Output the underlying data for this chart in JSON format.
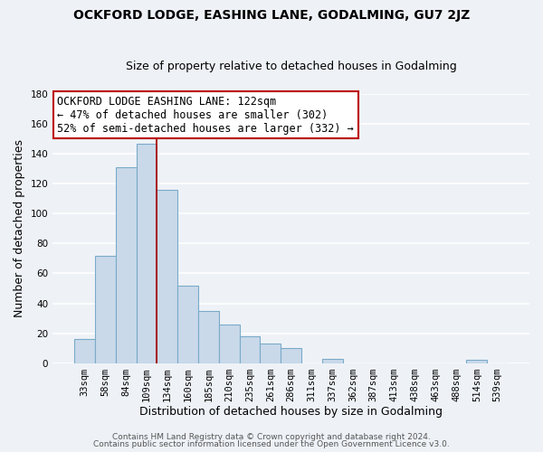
{
  "title": "OCKFORD LODGE, EASHING LANE, GODALMING, GU7 2JZ",
  "subtitle": "Size of property relative to detached houses in Godalming",
  "xlabel": "Distribution of detached houses by size in Godalming",
  "ylabel": "Number of detached properties",
  "bar_labels": [
    "33sqm",
    "58sqm",
    "84sqm",
    "109sqm",
    "134sqm",
    "160sqm",
    "185sqm",
    "210sqm",
    "235sqm",
    "261sqm",
    "286sqm",
    "311sqm",
    "337sqm",
    "362sqm",
    "387sqm",
    "413sqm",
    "438sqm",
    "463sqm",
    "488sqm",
    "514sqm",
    "539sqm"
  ],
  "bar_values": [
    16,
    72,
    131,
    147,
    116,
    52,
    35,
    26,
    18,
    13,
    10,
    0,
    3,
    0,
    0,
    0,
    0,
    0,
    0,
    2,
    0
  ],
  "bar_color": "#c9d9ea",
  "bar_edge_color": "#7aaac8",
  "marker_line_color": "#aa0000",
  "ylim": [
    0,
    180
  ],
  "yticks": [
    0,
    20,
    40,
    60,
    80,
    100,
    120,
    140,
    160,
    180
  ],
  "annotation_title": "OCKFORD LODGE EASHING LANE: 122sqm",
  "annotation_line1": "← 47% of detached houses are smaller (302)",
  "annotation_line2": "52% of semi-detached houses are larger (332) →",
  "annotation_box_facecolor": "#ffffff",
  "annotation_box_edgecolor": "#bb0000",
  "footer1": "Contains HM Land Registry data © Crown copyright and database right 2024.",
  "footer2": "Contains public sector information licensed under the Open Government Licence v3.0.",
  "background_color": "#eef2f7",
  "grid_color": "#ffffff",
  "title_fontsize": 10,
  "subtitle_fontsize": 9,
  "axis_label_fontsize": 9,
  "tick_fontsize": 7.5,
  "annotation_fontsize": 8.5,
  "footer_fontsize": 6.5
}
